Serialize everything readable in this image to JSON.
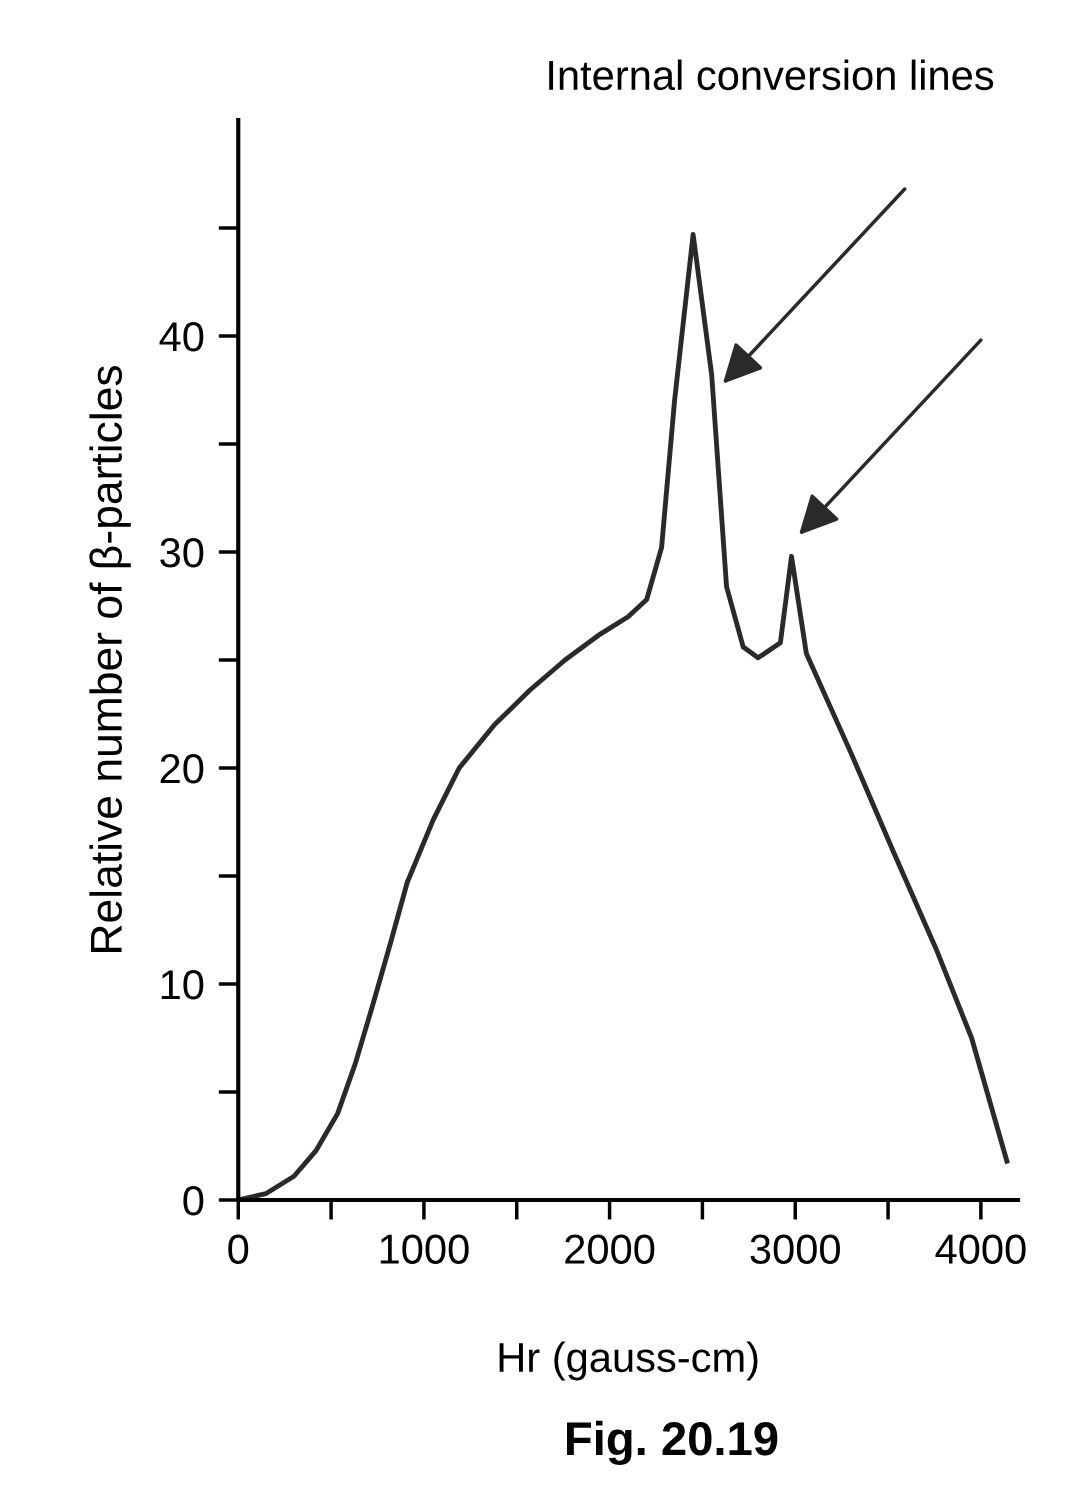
{
  "chart_data": {
    "type": "line",
    "xlabel": "Hr (gauss-cm)",
    "ylabel": "Relative number of β-particles",
    "x": [
      0,
      150,
      300,
      420,
      535,
      630,
      720,
      820,
      910,
      1050,
      1190,
      1380,
      1570,
      1760,
      1950,
      2100,
      2200,
      2280,
      2350,
      2450,
      2550,
      2630,
      2720,
      2800,
      2920,
      2980,
      3060,
      3300,
      3530,
      3760,
      3950,
      4140
    ],
    "series": [
      {
        "color": "#2a2a2a",
        "values": [
          0,
          0.3,
          1.1,
          2.3,
          4,
          6.3,
          8.9,
          11.9,
          14.7,
          17.6,
          20,
          22,
          23.6,
          25,
          26.2,
          27,
          27.8,
          30.2,
          37,
          44.7,
          38.2,
          28.4,
          25.6,
          25.1,
          25.8,
          29.8,
          25.3,
          20.7,
          16.1,
          11.6,
          7.5,
          1.8
        ]
      }
    ],
    "xlim": [
      0,
      4200
    ],
    "ylim": [
      0,
      50
    ],
    "xticks": [
      0,
      1000,
      2000,
      3000,
      4000
    ],
    "yticks": [
      0,
      10,
      20,
      30,
      40
    ],
    "grid": false,
    "legend": false,
    "marker": "none",
    "line_style": "solid",
    "annotations": [
      "Internal conversion lines",
      "Fig. 20.19"
    ]
  }
}
